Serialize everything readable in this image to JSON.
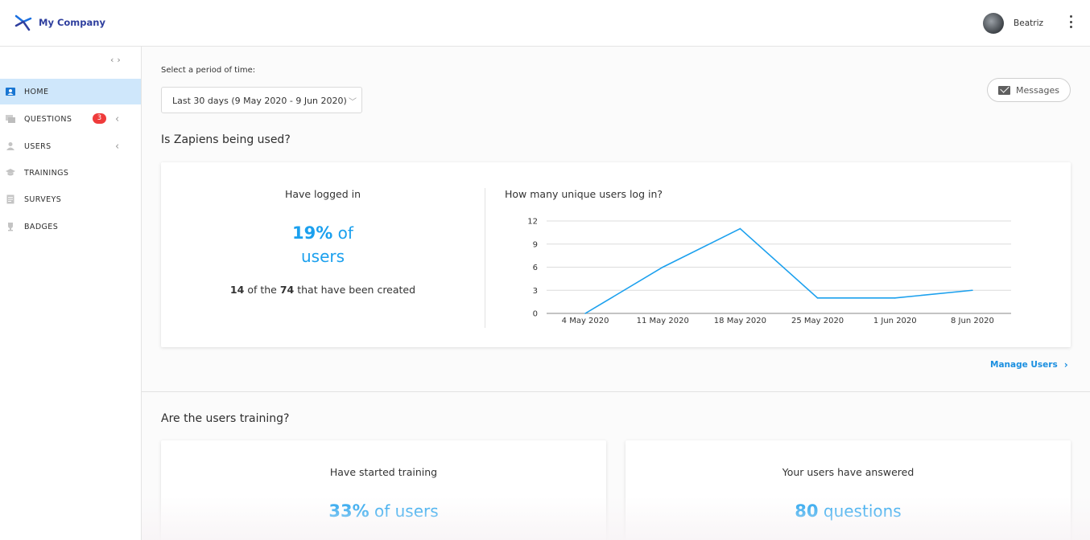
{
  "header": {
    "company": "My Company",
    "user_name": "Beatriz"
  },
  "sidebar": {
    "items": [
      {
        "label": "HOME",
        "icon": "user-badge-icon",
        "active": true
      },
      {
        "label": "QUESTIONS",
        "icon": "chat-icon",
        "badge": "3"
      },
      {
        "label": "USERS",
        "icon": "person-icon"
      },
      {
        "label": "TRAININGS",
        "icon": "graduation-cap-icon"
      },
      {
        "label": "SURVEYS",
        "icon": "clipboard-icon"
      },
      {
        "label": "BADGES",
        "icon": "trophy-icon"
      }
    ]
  },
  "main": {
    "period_label": "Select a period of time:",
    "period_value": "Last 30 days (9 May 2020 - 9 Jun 2020)",
    "messages_label": "Messages",
    "section1_title": "Is Zapiens being used?",
    "logged": {
      "heading": "Have logged in",
      "percent": "19%",
      "of": "of",
      "users": "users",
      "count": "14",
      "of_the": "of the",
      "total": "74",
      "created": "that have been created"
    },
    "chart_title": "How many unique users log in?",
    "manage_users": "Manage Users",
    "section2_title": "Are the users training?",
    "training": {
      "heading": "Have started training",
      "percent": "33%",
      "suffix": "of users"
    },
    "answered": {
      "heading": "Your users have answered",
      "count": "80",
      "suffix": "questions"
    }
  },
  "colors": {
    "accent": "#1ba0ee",
    "active_nav": "#cfe7fb",
    "badge": "#ef3b3b",
    "brand": "#2f3f9e"
  },
  "chart_data": {
    "type": "line",
    "x": [
      "4 May 2020",
      "11 May 2020",
      "18 May 2020",
      "25 May 2020",
      "1 Jun 2020",
      "8 Jun 2020"
    ],
    "series": [
      {
        "values": [
          0,
          6,
          11,
          2,
          2,
          3
        ]
      }
    ],
    "yticks": [
      0,
      3,
      6,
      9,
      12
    ],
    "ylim": [
      0,
      12
    ],
    "grid": true,
    "color": "#1ba0ee"
  }
}
